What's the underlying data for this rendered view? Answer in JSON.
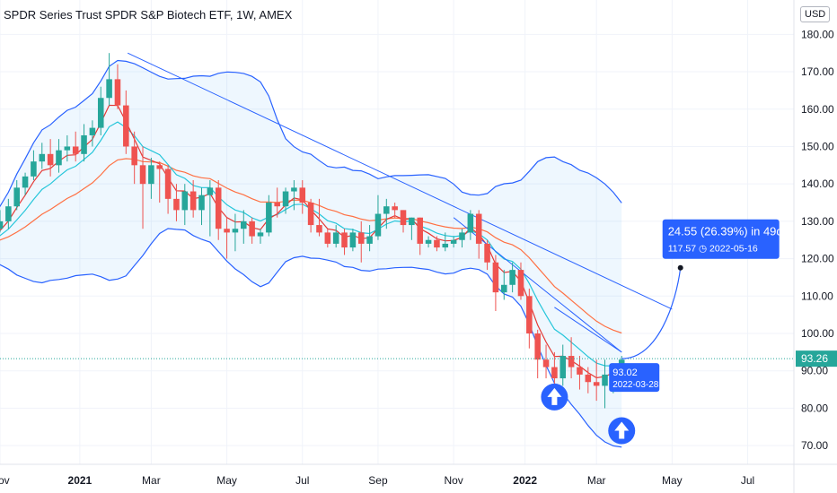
{
  "header": {
    "title": "SPDR Series Trust SPDR S&P Biotech ETF, 1W, AMEX",
    "currency": "USD"
  },
  "colors": {
    "up": "#26a69a",
    "down": "#ef5350",
    "band": "#2962ff",
    "ema_fast": "#e53935",
    "ema_mid": "#26c6da",
    "ema_slow": "#ff7043",
    "accent": "#2962ff"
  },
  "chart_data": {
    "type": "candlestick",
    "title": "SPDR Series Trust SPDR S&P Biotech ETF, 1W, AMEX",
    "ylim": [
      65,
      182
    ],
    "y_ticks": [
      "180.00",
      "170.00",
      "160.00",
      "150.00",
      "140.00",
      "130.00",
      "120.00",
      "110.00",
      "100.00",
      "90.00",
      "80.00",
      "70.00"
    ],
    "y_tick_values": [
      180,
      170,
      160,
      150,
      140,
      130,
      120,
      110,
      100,
      90,
      80,
      70
    ],
    "x_ticks": [
      {
        "label": "Nov",
        "week": 0,
        "bold": false
      },
      {
        "label": "2021",
        "week": 9.5,
        "bold": true
      },
      {
        "label": "Mar",
        "week": 18,
        "bold": false
      },
      {
        "label": "May",
        "week": 27,
        "bold": false
      },
      {
        "label": "Jul",
        "week": 36,
        "bold": false
      },
      {
        "label": "Sep",
        "week": 45,
        "bold": false
      },
      {
        "label": "Nov",
        "week": 54,
        "bold": false
      },
      {
        "label": "2022",
        "week": 62.5,
        "bold": true
      },
      {
        "label": "Mar",
        "week": 71,
        "bold": false
      },
      {
        "label": "May",
        "week": 80,
        "bold": false
      },
      {
        "label": "Jul",
        "week": 89,
        "bold": false
      }
    ],
    "x_range_weeks": [
      0,
      94.5
    ],
    "last_week": 74,
    "candles": [
      [
        124,
        125,
        123,
        124
      ],
      [
        124,
        126,
        122,
        124
      ],
      [
        124,
        127,
        123,
        125
      ],
      [
        125,
        130,
        124,
        128
      ],
      [
        128,
        133,
        127,
        130
      ],
      [
        130,
        136,
        128,
        134
      ],
      [
        134,
        141,
        133,
        139
      ],
      [
        139,
        143,
        137,
        142
      ],
      [
        142,
        149,
        141,
        146
      ],
      [
        146,
        151,
        144,
        148
      ],
      [
        148,
        152,
        142,
        145
      ],
      [
        145,
        152,
        143,
        149
      ],
      [
        149,
        153,
        146,
        150
      ],
      [
        150,
        154,
        146,
        148
      ],
      [
        148,
        156,
        146,
        153
      ],
      [
        153,
        157,
        150,
        155
      ],
      [
        155,
        166,
        153,
        163
      ],
      [
        163,
        175,
        161,
        168
      ],
      [
        168,
        172,
        160,
        161
      ],
      [
        161,
        165,
        148,
        150
      ],
      [
        150,
        154,
        140,
        145
      ],
      [
        145,
        150,
        128,
        140
      ],
      [
        140,
        147,
        136,
        145
      ],
      [
        145,
        146,
        135,
        144
      ],
      [
        144,
        145,
        132,
        136
      ],
      [
        136,
        140,
        130,
        133
      ],
      [
        133,
        140,
        129,
        138
      ],
      [
        138,
        141,
        131,
        133
      ],
      [
        133,
        139,
        129,
        137
      ],
      [
        137,
        141,
        126,
        139
      ],
      [
        139,
        141,
        125,
        128
      ],
      [
        128,
        131,
        120,
        127
      ],
      [
        127,
        132,
        122,
        128
      ],
      [
        128,
        133,
        124,
        130
      ],
      [
        130,
        131,
        124,
        126
      ],
      [
        126,
        128,
        124,
        127
      ],
      [
        127,
        137,
        126,
        135
      ],
      [
        135,
        139,
        131,
        134
      ],
      [
        134,
        139,
        132,
        138
      ],
      [
        138,
        141,
        133,
        139
      ],
      [
        139,
        141,
        132,
        135
      ],
      [
        135,
        136,
        127,
        129
      ],
      [
        129,
        136,
        126,
        127
      ],
      [
        127,
        128,
        123,
        124
      ],
      [
        124,
        129,
        123,
        127
      ],
      [
        127,
        128,
        121,
        123
      ],
      [
        123,
        128,
        122,
        127
      ],
      [
        127,
        130,
        119,
        124
      ],
      [
        124,
        129,
        122,
        126
      ],
      [
        126,
        137,
        125,
        132
      ],
      [
        132,
        136,
        128,
        134
      ],
      [
        134,
        135,
        131,
        133
      ],
      [
        133,
        133,
        127,
        129
      ],
      [
        129,
        131,
        125,
        131
      ],
      [
        131,
        131,
        121,
        124
      ],
      [
        124,
        126,
        123,
        125
      ],
      [
        125,
        126,
        122,
        123
      ],
      [
        123,
        127,
        122,
        124
      ],
      [
        124,
        126,
        123,
        125
      ],
      [
        125,
        128,
        123,
        127
      ],
      [
        127,
        133,
        125,
        132
      ],
      [
        132,
        133,
        120,
        124
      ],
      [
        124,
        125,
        117,
        119
      ],
      [
        119,
        121,
        106,
        111
      ],
      [
        111,
        117,
        109,
        113
      ],
      [
        113,
        119,
        111,
        117
      ],
      [
        117,
        119,
        109,
        110
      ],
      [
        110,
        112,
        96,
        100
      ],
      [
        100,
        101,
        88,
        93
      ],
      [
        93,
        97,
        88,
        91
      ],
      [
        91,
        95,
        85,
        88
      ],
      [
        88,
        97,
        86,
        94
      ],
      [
        94,
        99,
        88,
        91
      ],
      [
        91,
        94,
        85,
        89
      ],
      [
        89,
        91,
        84,
        87
      ],
      [
        87,
        93,
        82,
        86
      ],
      [
        86,
        93,
        80,
        89
      ],
      [
        89,
        92,
        84,
        91
      ],
      [
        91,
        94,
        88,
        93
      ]
    ],
    "annotations": {
      "projection": {
        "label": "24.55 (26.39%) in 49d",
        "sublabel": "117.57",
        "date": "2022-05-16",
        "value": 117.57,
        "week": 81
      },
      "anchor": {
        "price": "93.02",
        "date": "2022-03-28",
        "value": 93.02
      },
      "last_price": "93.26",
      "last_value": 93.26,
      "arrows": [
        {
          "week": 66,
          "value": 83
        },
        {
          "week": 74,
          "value": 74
        }
      ]
    }
  }
}
